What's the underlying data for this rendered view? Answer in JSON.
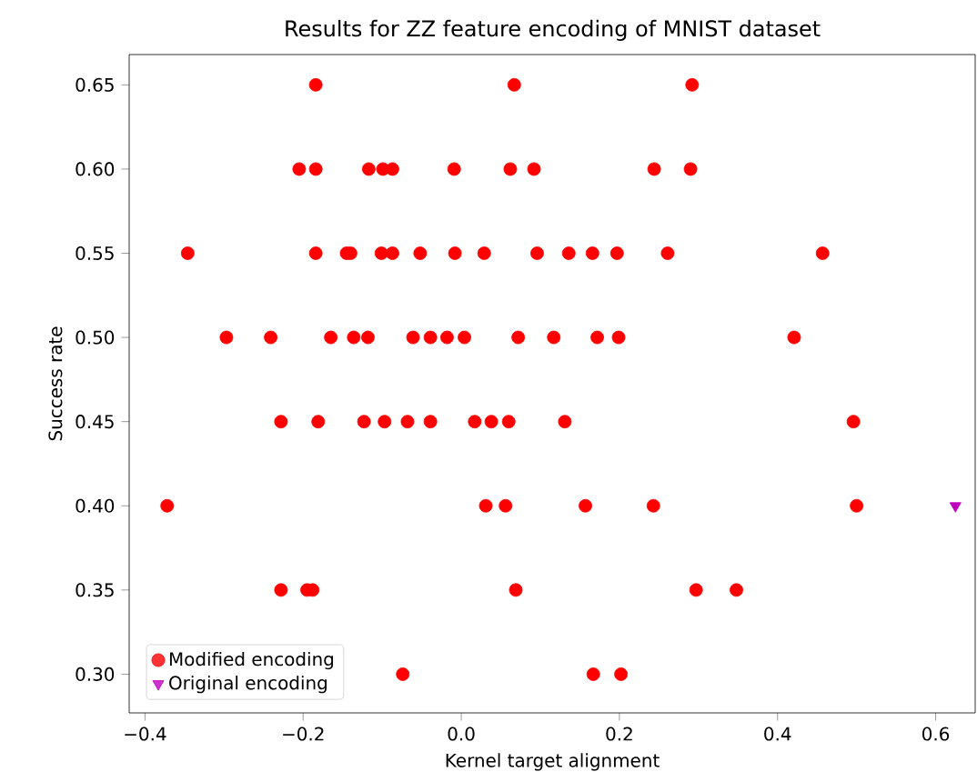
{
  "chart_data": {
    "type": "scatter",
    "title": "Results for ZZ feature encoding of MNIST dataset",
    "xlabel": "Kernel target alignment",
    "ylabel": "Success rate",
    "xlim": [
      -0.42,
      0.65
    ],
    "ylim": [
      0.277,
      0.668
    ],
    "xticks": [
      {
        "value": -0.4,
        "label": "−0.4"
      },
      {
        "value": -0.2,
        "label": "−0.2"
      },
      {
        "value": 0,
        "label": "0.0"
      },
      0.2,
      0.4,
      0.6
    ],
    "yticks": [
      {
        "value": 0.3,
        "label": "0.30"
      },
      0.35,
      {
        "value": 0.4,
        "label": "0.40"
      },
      0.45,
      {
        "value": 0.5,
        "label": "0.50"
      },
      0.55,
      {
        "value": 0.6,
        "label": "0.60"
      },
      0.65
    ],
    "legend": "bottom left",
    "grid": false,
    "series": [
      {
        "name": "Modified encoding",
        "color": "#ff0000",
        "marker": "circle",
        "x": [
          -0.184,
          0.067,
          0.292,
          -0.205,
          -0.184,
          -0.117,
          -0.099,
          -0.087,
          -0.009,
          0.062,
          0.092,
          0.244,
          0.29,
          -0.346,
          -0.184,
          -0.145,
          -0.14,
          -0.101,
          -0.087,
          -0.052,
          -0.008,
          0.029,
          0.096,
          0.136,
          0.166,
          0.197,
          0.261,
          0.457,
          -0.297,
          -0.241,
          -0.165,
          -0.136,
          -0.118,
          -0.061,
          -0.039,
          -0.018,
          0.004,
          0.072,
          0.117,
          0.172,
          0.199,
          0.421,
          -0.228,
          -0.181,
          -0.123,
          -0.097,
          -0.068,
          -0.039,
          0.017,
          0.038,
          0.06,
          0.131,
          0.496,
          -0.372,
          0.031,
          0.056,
          0.157,
          0.243,
          0.5,
          -0.228,
          -0.195,
          -0.188,
          0.069,
          0.297,
          0.348,
          -0.074,
          0.167,
          0.202
        ],
        "values": [
          0.65,
          0.65,
          0.65,
          0.6,
          0.6,
          0.6,
          0.6,
          0.6,
          0.6,
          0.6,
          0.6,
          0.6,
          0.6,
          0.55,
          0.55,
          0.55,
          0.55,
          0.55,
          0.55,
          0.55,
          0.55,
          0.55,
          0.55,
          0.55,
          0.55,
          0.55,
          0.55,
          0.55,
          0.5,
          0.5,
          0.5,
          0.5,
          0.5,
          0.5,
          0.5,
          0.5,
          0.5,
          0.5,
          0.5,
          0.5,
          0.5,
          0.5,
          0.45,
          0.45,
          0.45,
          0.45,
          0.45,
          0.45,
          0.45,
          0.45,
          0.45,
          0.45,
          0.45,
          0.4,
          0.4,
          0.4,
          0.4,
          0.4,
          0.4,
          0.35,
          0.35,
          0.35,
          0.35,
          0.35,
          0.35,
          0.3,
          0.3,
          0.3
        ]
      },
      {
        "name": "Original encoding",
        "color": "#bf00bf",
        "marker": "triangle down",
        "x": [
          0.625
        ],
        "values": [
          0.4
        ]
      }
    ]
  }
}
